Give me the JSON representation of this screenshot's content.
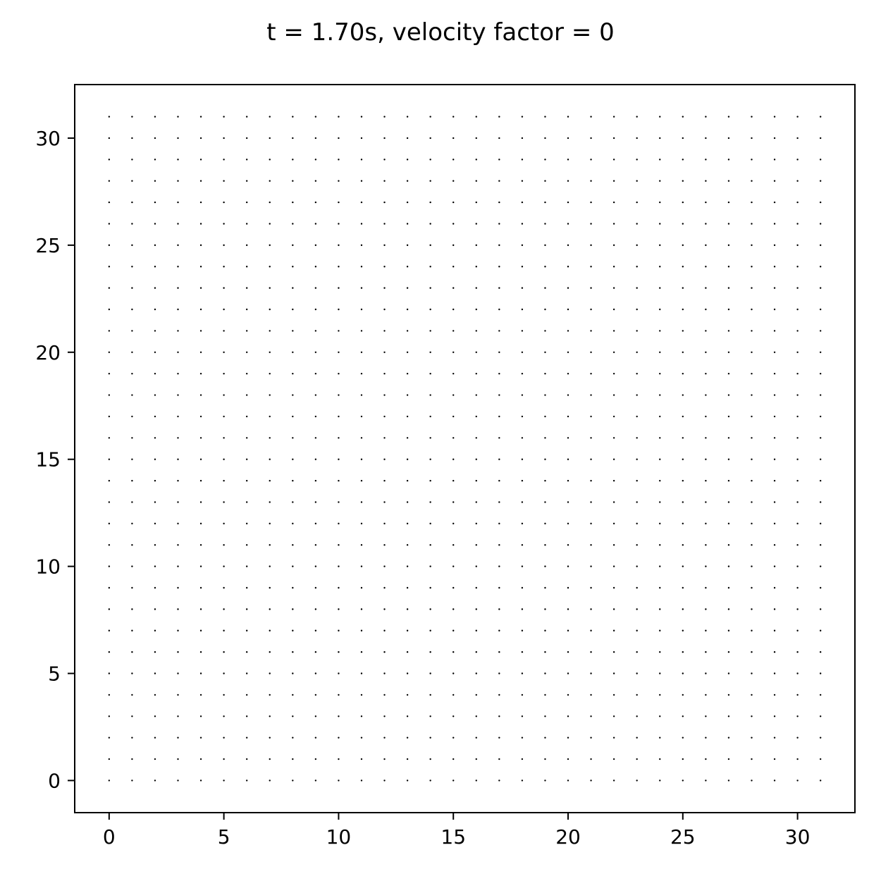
{
  "chart_data": {
    "type": "scatter",
    "title": "t = 1.70s, velocity factor = 0",
    "xlabel": "",
    "ylabel": "",
    "xlim": [
      -1.5,
      32.5
    ],
    "ylim": [
      -1.5,
      32.5
    ],
    "x_ticks": [
      0,
      5,
      10,
      15,
      20,
      25,
      30
    ],
    "y_ticks": [
      0,
      5,
      10,
      15,
      20,
      25,
      30
    ],
    "x_tick_labels": [
      "0",
      "5",
      "10",
      "15",
      "20",
      "25",
      "30"
    ],
    "y_tick_labels": [
      "0",
      "5",
      "10",
      "15",
      "20",
      "25",
      "30"
    ],
    "grid": false,
    "legend": "none",
    "series": [
      {
        "marker": "point",
        "color": "#000000",
        "grid_points": {
          "x_start": 0,
          "x_end": 31,
          "x_step": 1,
          "y_start": 0,
          "y_end": 31,
          "y_step": 1
        },
        "velocity": 0
      }
    ]
  }
}
